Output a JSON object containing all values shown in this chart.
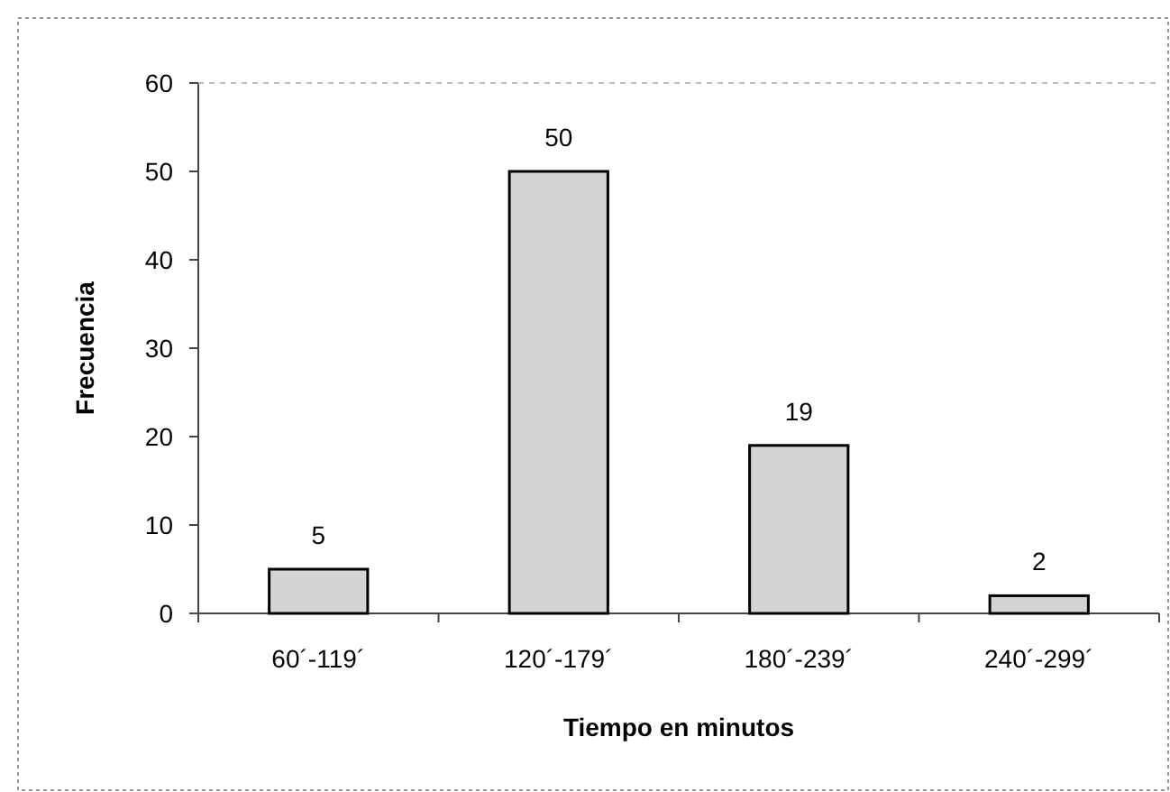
{
  "chart_data": {
    "type": "bar",
    "xlabel": "Tiempo en minutos",
    "ylabel": "Frecuencia",
    "categories": [
      "60´-119´",
      "120´-179´",
      "180´-239´",
      "240´-299´"
    ],
    "values": [
      5,
      50,
      19,
      2
    ],
    "color": "#d4d4d4",
    "ylim": [
      0,
      60
    ],
    "yticks": [
      0,
      10,
      20,
      30,
      40,
      50,
      60
    ],
    "data_labels": true
  }
}
